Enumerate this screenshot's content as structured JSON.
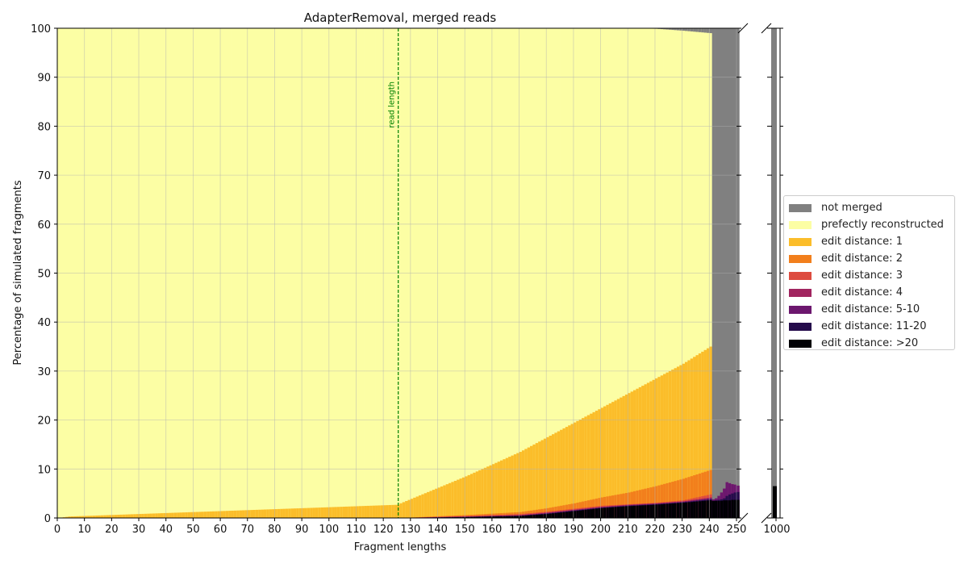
{
  "chart_data": {
    "type": "bar",
    "stacked": true,
    "title": "AdapterRemoval, merged reads",
    "xlabel": "Fragment lengths",
    "ylabel": "Percentage of simulated fragments",
    "xlim": [
      0,
      250
    ],
    "ylim": [
      0,
      100
    ],
    "xticks": [
      "0",
      "10",
      "20",
      "30",
      "40",
      "50",
      "60",
      "70",
      "80",
      "90",
      "100",
      "110",
      "120",
      "130",
      "140",
      "150",
      "160",
      "170",
      "180",
      "190",
      "200",
      "210",
      "220",
      "230",
      "240",
      "250"
    ],
    "yticks": [
      "0",
      "10",
      "20",
      "30",
      "40",
      "50",
      "60",
      "70",
      "80",
      "90",
      "100"
    ],
    "inset_xticks": [
      "1000"
    ],
    "grid": true,
    "legend_position": "center-right",
    "annotation": {
      "text": "read length",
      "x": 125
    },
    "series": [
      {
        "name": "not merged",
        "color": "#808080"
      },
      {
        "name": "prefectly reconstructed",
        "color": "#fcfea4"
      },
      {
        "name": "edit distance: 1",
        "color": "#fbbd2a"
      },
      {
        "name": "edit distance: 2",
        "color": "#f27f1c"
      },
      {
        "name": "edit distance: 3",
        "color": "#dd4b3f"
      },
      {
        "name": "edit distance: 4",
        "color": "#a1255f"
      },
      {
        "name": "edit distance: 5-10",
        "color": "#6c176e"
      },
      {
        "name": "edit distance: 11-20",
        "color": "#250c4b"
      },
      {
        "name": "edit distance: >20",
        "color": "#000004"
      }
    ],
    "profile": {
      "fragment_length": [
        0,
        4,
        125,
        126,
        150,
        170,
        180,
        190,
        200,
        210,
        220,
        230,
        240
      ],
      "edit1_cumulative_pct": [
        0,
        0.3,
        2.7,
        3.0,
        8.5,
        13.5,
        16.5,
        19.5,
        22.5,
        25.5,
        28.5,
        31.5,
        35.0
      ],
      "edit2_cumulative_pct": [
        0,
        0,
        0,
        0,
        0.6,
        1.2,
        2.0,
        3.0,
        4.2,
        5.2,
        6.5,
        8.0,
        9.8
      ],
      "edit3_cumulative_pct": [
        0,
        0,
        0,
        0,
        0.4,
        0.8,
        1.3,
        1.9,
        2.5,
        2.8,
        3.1,
        3.6,
        4.8
      ],
      "edit4_cumulative_pct": [
        0,
        0,
        0,
        0,
        0.3,
        0.6,
        1.1,
        1.7,
        2.3,
        2.7,
        3.0,
        3.4,
        4.2
      ],
      "edit5_10_cumulative_pct": [
        0,
        0,
        0,
        0,
        0.25,
        0.5,
        1.0,
        1.6,
        2.2,
        2.6,
        2.9,
        3.3,
        4.0
      ],
      "edit11_20_cumulative_pct": [
        0,
        0,
        0,
        0,
        0.2,
        0.45,
        0.9,
        1.5,
        2.1,
        2.5,
        2.8,
        3.2,
        3.8
      ],
      "edit_gt20_cumulative_pct": [
        0,
        0,
        0,
        0,
        0.15,
        0.4,
        0.8,
        1.4,
        2.0,
        2.4,
        2.7,
        3.1,
        3.6
      ],
      "not_merged_top_pct": [
        0,
        0,
        0,
        0,
        0,
        0,
        0,
        0,
        0,
        0,
        0.1,
        0.5,
        1.0
      ]
    },
    "tail_bars": [
      {
        "x": 241,
        "not_merged": 100,
        "gt20": 3.5,
        "e11_20": 3.5,
        "e5_10": 3.8,
        "e4": 3.8
      },
      {
        "x": 242,
        "not_merged": 100,
        "gt20": 3.5,
        "e11_20": 3.6,
        "e5_10": 4.0,
        "e4": 4.0
      },
      {
        "x": 243,
        "not_merged": 100,
        "gt20": 3.5,
        "e11_20": 3.7,
        "e5_10": 4.5,
        "e4": 4.5
      },
      {
        "x": 244,
        "not_merged": 100,
        "gt20": 3.5,
        "e11_20": 3.8,
        "e5_10": 5.2,
        "e4": 5.2
      },
      {
        "x": 245,
        "not_merged": 100,
        "gt20": 3.6,
        "e11_20": 4.0,
        "e5_10": 6.0,
        "e4": 6.0
      },
      {
        "x": 246,
        "not_merged": 100,
        "gt20": 3.6,
        "e11_20": 4.5,
        "e5_10": 7.3,
        "e4": 7.3
      },
      {
        "x": 247,
        "not_merged": 100,
        "gt20": 3.6,
        "e11_20": 4.8,
        "e5_10": 7.1,
        "e4": 7.1
      },
      {
        "x": 248,
        "not_merged": 100,
        "gt20": 3.7,
        "e11_20": 5.0,
        "e5_10": 6.9,
        "e4": 6.9
      },
      {
        "x": 249,
        "not_merged": 100,
        "gt20": 3.7,
        "e11_20": 5.2,
        "e5_10": 6.8,
        "e4": 6.8
      },
      {
        "x": 250,
        "not_merged": 100,
        "gt20": 3.7,
        "e11_20": 5.3,
        "e5_10": 6.6,
        "e4": 6.6
      }
    ],
    "inset_bar": {
      "x": 1000,
      "not_merged": 100,
      "gt20": 6.5
    }
  }
}
